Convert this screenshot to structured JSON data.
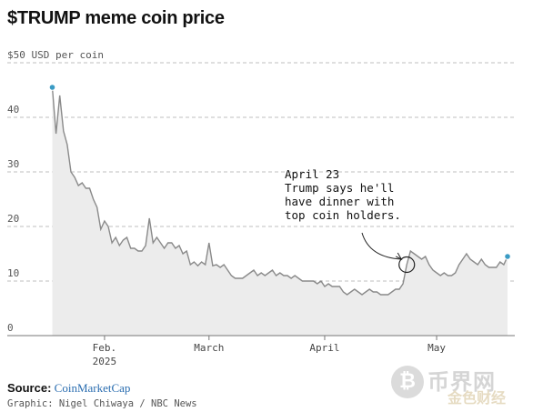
{
  "title": "$TRUMP meme coin price",
  "source_label": "Source:",
  "source_name": "CoinMarketCap",
  "credit": "Graphic: Nigel Chiwaya / NBC News",
  "watermark": {
    "icon": "bitcoin-icon",
    "text_large": "币界网",
    "text_small": "金色财经"
  },
  "colors": {
    "line": "#8a8a8a",
    "area": "#ececec",
    "point": "#3a9bc4",
    "grid": "#bfbfbf"
  },
  "chart_data": {
    "type": "area",
    "title": "$TRUMP meme coin price",
    "ylabel": "$50 USD per coin",
    "ylim": [
      0,
      50
    ],
    "yticks": [
      0,
      10,
      20,
      30,
      40,
      50
    ],
    "ytick_labels": [
      "0",
      "10",
      "20",
      "30",
      "40",
      "$50 USD per coin"
    ],
    "grid": true,
    "x_ticks": [
      {
        "date": "2025-02-01",
        "label": "Feb.",
        "sublabel": "2025"
      },
      {
        "date": "2025-03-01",
        "label": "March"
      },
      {
        "date": "2025-04-01",
        "label": "April"
      },
      {
        "date": "2025-05-01",
        "label": "May"
      }
    ],
    "series": [
      {
        "points": [
          [
            "2025-01-18",
            45.5
          ],
          [
            "2025-01-19",
            37.0
          ],
          [
            "2025-01-20",
            44.0
          ],
          [
            "2025-01-21",
            37.5
          ],
          [
            "2025-01-22",
            35.0
          ],
          [
            "2025-01-23",
            30.0
          ],
          [
            "2025-01-24",
            29.0
          ],
          [
            "2025-01-25",
            27.5
          ],
          [
            "2025-01-26",
            28.0
          ],
          [
            "2025-01-27",
            27.0
          ],
          [
            "2025-01-28",
            27.0
          ],
          [
            "2025-01-29",
            25.0
          ],
          [
            "2025-01-30",
            23.5
          ],
          [
            "2025-01-31",
            19.5
          ],
          [
            "2025-02-01",
            21.0
          ],
          [
            "2025-02-02",
            20.0
          ],
          [
            "2025-02-03",
            17.0
          ],
          [
            "2025-02-04",
            18.0
          ],
          [
            "2025-02-05",
            16.5
          ],
          [
            "2025-02-06",
            17.5
          ],
          [
            "2025-02-07",
            18.0
          ],
          [
            "2025-02-08",
            16.0
          ],
          [
            "2025-02-09",
            16.0
          ],
          [
            "2025-02-10",
            15.5
          ],
          [
            "2025-02-11",
            15.5
          ],
          [
            "2025-02-12",
            16.5
          ],
          [
            "2025-02-13",
            21.5
          ],
          [
            "2025-02-14",
            17.0
          ],
          [
            "2025-02-15",
            18.0
          ],
          [
            "2025-02-16",
            17.0
          ],
          [
            "2025-02-17",
            16.0
          ],
          [
            "2025-02-18",
            17.0
          ],
          [
            "2025-02-19",
            17.0
          ],
          [
            "2025-02-20",
            16.0
          ],
          [
            "2025-02-21",
            16.5
          ],
          [
            "2025-02-22",
            15.0
          ],
          [
            "2025-02-23",
            15.5
          ],
          [
            "2025-02-24",
            13.0
          ],
          [
            "2025-02-25",
            13.5
          ],
          [
            "2025-02-26",
            12.8
          ],
          [
            "2025-02-27",
            13.5
          ],
          [
            "2025-02-28",
            13.0
          ],
          [
            "2025-03-01",
            17.0
          ],
          [
            "2025-03-02",
            12.8
          ],
          [
            "2025-03-03",
            13.0
          ],
          [
            "2025-03-04",
            12.5
          ],
          [
            "2025-03-05",
            13.0
          ],
          [
            "2025-03-06",
            12.0
          ],
          [
            "2025-03-07",
            11.0
          ],
          [
            "2025-03-08",
            10.5
          ],
          [
            "2025-03-09",
            10.5
          ],
          [
            "2025-03-10",
            10.5
          ],
          [
            "2025-03-11",
            11.0
          ],
          [
            "2025-03-12",
            11.5
          ],
          [
            "2025-03-13",
            12.0
          ],
          [
            "2025-03-14",
            11.0
          ],
          [
            "2025-03-15",
            11.5
          ],
          [
            "2025-03-16",
            11.0
          ],
          [
            "2025-03-17",
            11.5
          ],
          [
            "2025-03-18",
            12.0
          ],
          [
            "2025-03-19",
            11.0
          ],
          [
            "2025-03-20",
            11.5
          ],
          [
            "2025-03-21",
            11.0
          ],
          [
            "2025-03-22",
            11.0
          ],
          [
            "2025-03-23",
            10.5
          ],
          [
            "2025-03-24",
            11.0
          ],
          [
            "2025-03-25",
            10.5
          ],
          [
            "2025-03-26",
            10.0
          ],
          [
            "2025-03-27",
            10.0
          ],
          [
            "2025-03-28",
            10.0
          ],
          [
            "2025-03-29",
            10.0
          ],
          [
            "2025-03-30",
            9.5
          ],
          [
            "2025-03-31",
            10.0
          ],
          [
            "2025-04-01",
            9.0
          ],
          [
            "2025-04-02",
            9.5
          ],
          [
            "2025-04-03",
            9.0
          ],
          [
            "2025-04-04",
            9.0
          ],
          [
            "2025-04-05",
            9.0
          ],
          [
            "2025-04-06",
            8.0
          ],
          [
            "2025-04-07",
            7.5
          ],
          [
            "2025-04-08",
            8.0
          ],
          [
            "2025-04-09",
            8.5
          ],
          [
            "2025-04-10",
            8.0
          ],
          [
            "2025-04-11",
            7.5
          ],
          [
            "2025-04-12",
            8.0
          ],
          [
            "2025-04-13",
            8.5
          ],
          [
            "2025-04-14",
            8.0
          ],
          [
            "2025-04-15",
            8.0
          ],
          [
            "2025-04-16",
            7.5
          ],
          [
            "2025-04-17",
            7.5
          ],
          [
            "2025-04-18",
            7.5
          ],
          [
            "2025-04-19",
            8.0
          ],
          [
            "2025-04-20",
            8.5
          ],
          [
            "2025-04-21",
            8.5
          ],
          [
            "2025-04-22",
            9.5
          ],
          [
            "2025-04-23",
            13.0
          ],
          [
            "2025-04-24",
            15.5
          ],
          [
            "2025-04-25",
            15.0
          ],
          [
            "2025-04-26",
            14.5
          ],
          [
            "2025-04-27",
            14.0
          ],
          [
            "2025-04-28",
            14.5
          ],
          [
            "2025-04-29",
            13.0
          ],
          [
            "2025-04-30",
            12.0
          ],
          [
            "2025-05-01",
            11.5
          ],
          [
            "2025-05-02",
            11.0
          ],
          [
            "2025-05-03",
            11.5
          ],
          [
            "2025-05-04",
            11.0
          ],
          [
            "2025-05-05",
            11.0
          ],
          [
            "2025-05-06",
            11.5
          ],
          [
            "2025-05-07",
            13.0
          ],
          [
            "2025-05-08",
            14.0
          ],
          [
            "2025-05-09",
            15.0
          ],
          [
            "2025-05-10",
            14.0
          ],
          [
            "2025-05-11",
            13.5
          ],
          [
            "2025-05-12",
            13.0
          ],
          [
            "2025-05-13",
            14.0
          ],
          [
            "2025-05-14",
            13.0
          ],
          [
            "2025-05-15",
            12.5
          ],
          [
            "2025-05-16",
            12.5
          ],
          [
            "2025-05-17",
            12.5
          ],
          [
            "2025-05-18",
            13.5
          ],
          [
            "2025-05-19",
            13.0
          ],
          [
            "2025-05-20",
            14.5
          ]
        ]
      }
    ],
    "highlighted_points": [
      [
        "2025-01-18",
        45.5
      ],
      [
        "2025-05-20",
        14.5
      ]
    ],
    "annotation": {
      "date": "2025-04-23",
      "value": 13.0,
      "lines": [
        "April 23",
        "Trump says he'll",
        "have dinner with",
        "top coin holders."
      ]
    }
  }
}
